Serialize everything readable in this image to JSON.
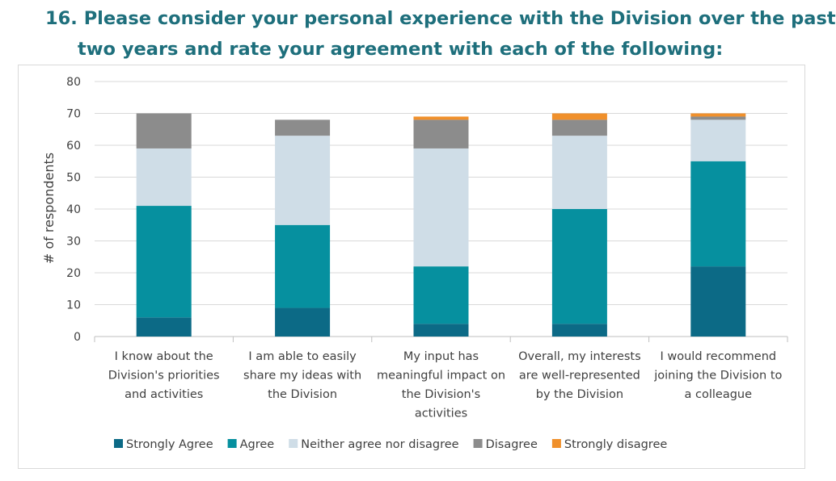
{
  "title": {
    "line1": "16. Please consider your personal experience with the Division over the past",
    "line2": "two years and rate your agreement with each of the following:"
  },
  "chart_data": {
    "type": "bar",
    "stacked": true,
    "ylabel": "# of respondents",
    "xlabel": "",
    "ylim": [
      0,
      80
    ],
    "yticks": [
      0,
      10,
      20,
      30,
      40,
      50,
      60,
      70,
      80
    ],
    "grid": true,
    "legend_position": "bottom",
    "categories": [
      [
        "I know about the",
        "Division's priorities",
        "and activities"
      ],
      [
        "I am able to easily",
        "share my ideas with",
        "the Division"
      ],
      [
        "My input has",
        "meaningful impact on",
        "the Division's",
        "activities"
      ],
      [
        "Overall, my interests",
        "are well-represented",
        "by the Division"
      ],
      [
        "I would recommend",
        "joining the Division to",
        "a colleague"
      ]
    ],
    "series": [
      {
        "name": "Strongly Agree",
        "color": "#0c6a86",
        "values": [
          6,
          9,
          4,
          4,
          22
        ]
      },
      {
        "name": "Agree",
        "color": "#06909f",
        "values": [
          35,
          26,
          18,
          36,
          33
        ]
      },
      {
        "name": "Neither agree nor disagree",
        "color": "#cfdde7",
        "values": [
          18,
          28,
          37,
          23,
          13
        ]
      },
      {
        "name": "Disagree",
        "color": "#8c8c8c",
        "values": [
          11,
          5,
          9,
          5,
          1
        ]
      },
      {
        "name": "Strongly disagree",
        "color": "#f0902b",
        "values": [
          0,
          0,
          1,
          2,
          1
        ]
      }
    ]
  }
}
